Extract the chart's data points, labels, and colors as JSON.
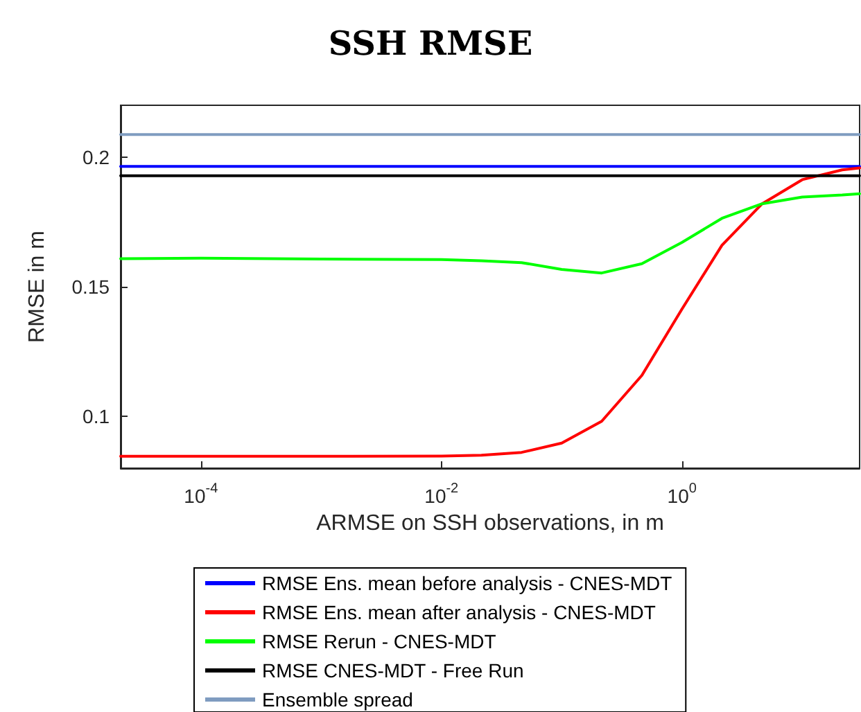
{
  "chart_data": {
    "type": "line",
    "title": "SSH RMSE",
    "xlabel": "ARMSE on SSH observations, in m",
    "ylabel": "RMSE in m",
    "log": "x",
    "xlim": [
      2.15e-05,
      30
    ],
    "xticks": [
      {
        "value": 0.0001,
        "label": "10$^{-4}$"
      },
      {
        "value": 0.01,
        "label": "10$^{-2}$"
      },
      {
        "value": 1,
        "label": "10$^{0}$"
      }
    ],
    "ylim": [
      0.08,
      0.22
    ],
    "yticks": [
      0.1,
      0.15,
      0.2
    ],
    "grid": false,
    "legend": "bottom",
    "marker": "none",
    "line_style": "solid",
    "series": [
      {
        "name": "RMSE Ens. mean before analysis - CNES-MDT",
        "color": "#0000ff",
        "x": [
          2.15e-05,
          30
        ],
        "values": [
          0.1964,
          0.1964
        ]
      },
      {
        "name": "RMSE Ens. mean after analysis - CNES-MDT",
        "color": "#ff0000",
        "x": [
          2.15e-05,
          0.0001,
          0.001,
          0.01,
          0.0215,
          0.0464,
          0.1,
          0.215,
          0.464,
          1,
          2.15,
          4.64,
          10,
          21.5,
          30
        ],
        "values": [
          0.0846,
          0.0846,
          0.0846,
          0.0847,
          0.085,
          0.0861,
          0.0897,
          0.0981,
          0.1158,
          0.1414,
          0.166,
          0.182,
          0.1913,
          0.1951,
          0.1958
        ]
      },
      {
        "name": "RMSE Rerun - CNES-MDT",
        "color": "#00ff00",
        "x": [
          2.15e-05,
          0.0001,
          0.001,
          0.01,
          0.0215,
          0.0464,
          0.1,
          0.215,
          0.464,
          1,
          2.15,
          4.64,
          10,
          21.5,
          30
        ],
        "values": [
          0.1608,
          0.161,
          0.1607,
          0.1605,
          0.16,
          0.1593,
          0.1567,
          0.1553,
          0.1589,
          0.1671,
          0.1764,
          0.182,
          0.1846,
          0.1854,
          0.1859
        ]
      },
      {
        "name": "RMSE CNES-MDT - Free Run",
        "color": "#000000",
        "x": [
          2.15e-05,
          30
        ],
        "values": [
          0.1928,
          0.1928
        ]
      },
      {
        "name": "Ensemble spread",
        "color": "#7f9cc0",
        "x": [
          2.15e-05,
          30
        ],
        "values": [
          0.2087,
          0.2087
        ]
      }
    ]
  }
}
